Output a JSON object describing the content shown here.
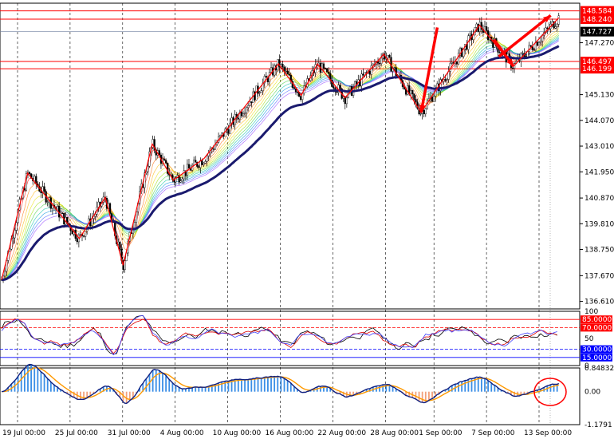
{
  "chart_data": {
    "type": "candlestick",
    "main_panel": {
      "y_ticks": [
        "136.610",
        "137.670",
        "138.750",
        "139.810",
        "140.870",
        "141.950",
        "143.010",
        "144.070",
        "145.130",
        "146.199",
        "147.270",
        "148.584"
      ],
      "current_price": "147.727",
      "horizontal_levels": [
        {
          "label": "148.584",
          "value": 148.584,
          "color": "#ff0000"
        },
        {
          "label": "148.240",
          "value": 148.24,
          "color": "#ff0000"
        },
        {
          "label": "146.497",
          "value": 146.497,
          "color": "#ff0000"
        },
        {
          "label": "146.199",
          "value": 146.199,
          "color": "#ff0000"
        }
      ],
      "ylim": [
        136.3,
        148.9
      ],
      "moving_average": {
        "color": "#1a1a6e"
      },
      "zigzag_points": [
        [
          0,
          137.5
        ],
        [
          1.6,
          141.9
        ],
        [
          4.8,
          139.2
        ],
        [
          6.4,
          140.9
        ],
        [
          7.5,
          138.1
        ],
        [
          9.3,
          143.1
        ],
        [
          10.6,
          141.6
        ],
        [
          12.5,
          142.5
        ],
        [
          17.1,
          146.4
        ],
        [
          18.5,
          145.1
        ],
        [
          19.5,
          146.4
        ],
        [
          21.2,
          145.0
        ],
        [
          23.6,
          146.8
        ],
        [
          25.9,
          144.4
        ],
        [
          29.5,
          148.0
        ],
        [
          31.6,
          146.3
        ],
        [
          34.4,
          148.3
        ]
      ]
    },
    "oscillator_panel": {
      "levels": [
        {
          "label": "85.0000",
          "value": 85,
          "color": "#ff0000"
        },
        {
          "label": "70.0000",
          "value": 70,
          "color": "#ff0000"
        },
        {
          "label": "30.0000",
          "value": 30,
          "color": "#0000ff"
        },
        {
          "label": "15.0000",
          "value": 15,
          "color": "#0000ff"
        }
      ],
      "y_ticks": [
        "100",
        "50",
        "0"
      ],
      "ylim": [
        0,
        100
      ]
    },
    "macd_panel": {
      "y_ticks": [
        "0.84832",
        "0.00",
        "-1.1791"
      ],
      "ylim": [
        -1.1791,
        0.84832
      ]
    },
    "x_ticks": [
      "19 Jul 00:00",
      "25 Jul 00:00",
      "31 Jul 00:00",
      "4 Aug 00:00",
      "10 Aug 00:00",
      "16 Aug 00:00",
      "22 Aug 00:00",
      "28 Aug 00:00",
      "1 Sep 00:00",
      "7 Sep 00:00",
      "13 Sep 00:00"
    ]
  }
}
